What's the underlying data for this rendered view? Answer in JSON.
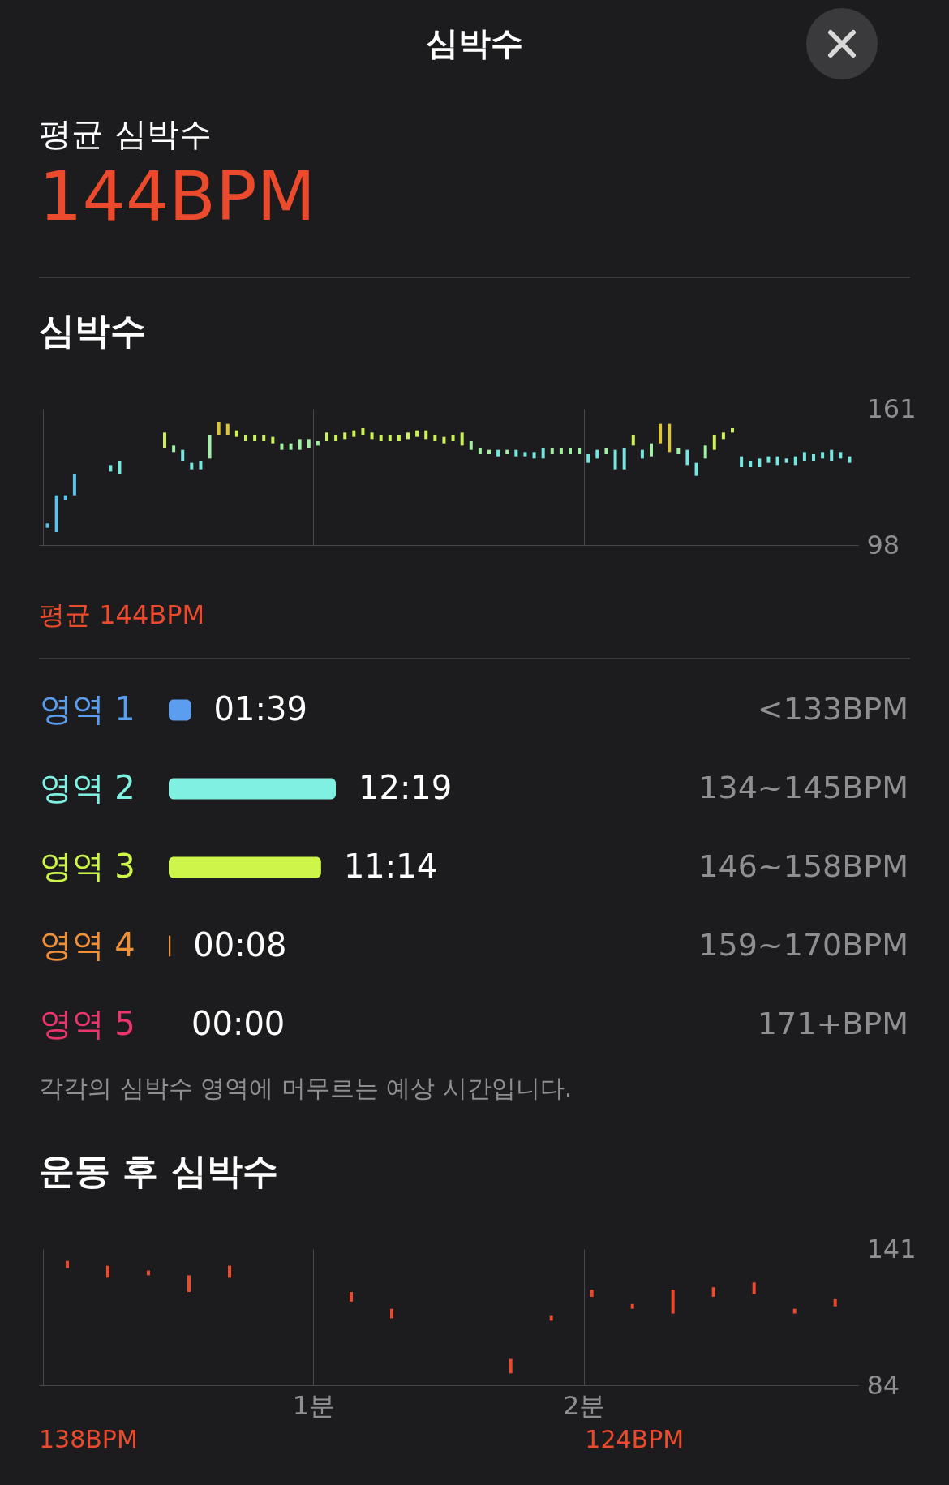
{
  "chart_data": [
    {
      "type": "other",
      "title": "심박수",
      "annotations": [
        "평균 심박수",
        "144BPM"
      ]
    },
    {
      "type": "bar",
      "title": "심박수",
      "categories": [
        null,
        null,
        null,
        null,
        null,
        null,
        null,
        null,
        null,
        null,
        null,
        null,
        null,
        null,
        null,
        null,
        null,
        null,
        null,
        null,
        null,
        null,
        null,
        null,
        null,
        null,
        null,
        null,
        null,
        null,
        null,
        null,
        null,
        null,
        null,
        null,
        null,
        null,
        null,
        null,
        null,
        null,
        null,
        null,
        null,
        null,
        null,
        null,
        null,
        null,
        null,
        null,
        null,
        null,
        null,
        null,
        null,
        null,
        null,
        null,
        null,
        null,
        null,
        null,
        null,
        null,
        null,
        null,
        null,
        null,
        null,
        null,
        null,
        null,
        null,
        null,
        null,
        null,
        null,
        null,
        null,
        null,
        null,
        null,
        null,
        null,
        null,
        null,
        null,
        null
      ],
      "base": [
        106,
        104,
        119,
        121,
        null,
        null,
        null,
        132,
        131,
        null,
        null,
        null,
        null,
        143,
        141,
        137,
        133,
        133,
        138,
        149,
        149,
        148,
        146,
        146,
        146,
        145,
        142,
        142,
        142,
        143,
        144,
        146,
        146,
        147,
        148,
        149,
        147,
        146,
        146,
        146,
        147,
        148,
        147,
        146,
        145,
        146,
        144,
        142,
        140,
        140,
        139,
        140,
        139,
        139,
        138,
        138,
        140,
        140,
        140,
        140,
        136,
        138,
        140,
        133,
        133,
        144,
        138,
        139,
        145,
        141,
        140,
        135,
        130,
        138,
        142,
        147,
        150,
        134,
        134,
        134,
        136,
        135,
        136,
        135,
        137,
        137,
        138,
        137,
        138,
        136
      ],
      "values": [
        2,
        17,
        2,
        10,
        null,
        null,
        null,
        3,
        6,
        null,
        null,
        null,
        null,
        7,
        3,
        5,
        3,
        4,
        11,
        6,
        5,
        3,
        3,
        3,
        3,
        3,
        3,
        3,
        5,
        4,
        2,
        4,
        3,
        3,
        3,
        3,
        3,
        3,
        3,
        3,
        3,
        3,
        4,
        3,
        3,
        3,
        6,
        4,
        3,
        2,
        3,
        2,
        3,
        2,
        3,
        5,
        3,
        3,
        3,
        3,
        4,
        4,
        3,
        9,
        10,
        5,
        4,
        6,
        9,
        13,
        3,
        7,
        6,
        6,
        7,
        3,
        2,
        5,
        3,
        4,
        3,
        4,
        2,
        4,
        4,
        3,
        3,
        5,
        3,
        3
      ],
      "colors": [
        "#5bc3ea",
        "#5bc3ea",
        "#5bc3ea",
        "#5bc3ea",
        null,
        null,
        null,
        "#78e6e0",
        "#78e6e0",
        null,
        null,
        null,
        null,
        "#cdf258",
        "#a4efa6",
        "#78e6e0",
        "#78e6e0",
        "#78e6e0",
        "#a4efa6",
        "#dcc53a",
        "#dcc53a",
        "#cdf258",
        "#cdf258",
        "#cdf258",
        "#cdf258",
        "#cdf258",
        "#a4efa6",
        "#a4efa6",
        "#a4efa6",
        "#a4efa6",
        "#a4efa6",
        "#cdf258",
        "#cdf258",
        "#cdf258",
        "#cdf258",
        "#cdf258",
        "#cdf258",
        "#cdf258",
        "#cdf258",
        "#cdf258",
        "#cdf258",
        "#cdf258",
        "#cdf258",
        "#cdf258",
        "#cdf258",
        "#cdf258",
        "#cdf258",
        "#a4efa6",
        "#a4efa6",
        "#a4efa6",
        "#78e6e0",
        "#a4efa6",
        "#78e6e0",
        "#78e6e0",
        "#78e6e0",
        "#78e6e0",
        "#a4efa6",
        "#a4efa6",
        "#a4efa6",
        "#a4efa6",
        "#78e6e0",
        "#78e6e0",
        "#a4efa6",
        "#78e6e0",
        "#78e6e0",
        "#cdf258",
        "#78e6e0",
        "#a4efa6",
        "#dcc53a",
        "#dcc53a",
        "#a4efa6",
        "#78e6e0",
        "#78e6e0",
        "#a4efa6",
        "#cdf258",
        "#cdf258",
        "#cdf258",
        "#78e6e0",
        "#78e6e0",
        "#78e6e0",
        "#78e6e0",
        "#78e6e0",
        "#78e6e0",
        "#78e6e0",
        "#78e6e0",
        "#78e6e0",
        "#78e6e0",
        "#78e6e0",
        "#78e6e0",
        "#78e6e0"
      ],
      "ylim": [
        98,
        161
      ],
      "yticks": [
        98,
        161
      ],
      "grid": "x",
      "annotations": [
        "평균 144BPM"
      ]
    },
    {
      "type": "bar",
      "orientation": "horizontal",
      "categories": [
        "영역 1",
        "영역 2",
        "영역 3",
        "영역 4",
        "영역 5"
      ],
      "values": [
        99,
        739,
        674,
        8,
        0
      ],
      "colors": [
        "#5b9ef0",
        "#7ff0e2",
        "#cdf54a",
        "#f0913a",
        "#e8356c"
      ],
      "value_labels": [
        "01:39",
        "12:19",
        "11:14",
        "00:08",
        "00:00"
      ],
      "annotations": [
        "<133BPM",
        "134~145BPM",
        "146~158BPM",
        "159~170BPM",
        "171+BPM",
        "각각의 심박수 영역에 머무르는 예상 시간입니다."
      ]
    },
    {
      "type": "bar",
      "title": "운동 후 심박수",
      "x": [
        0.09,
        0.24,
        0.39,
        0.54,
        0.69,
        1.14,
        1.29,
        1.73,
        1.88,
        2.03,
        2.18,
        2.33,
        2.48,
        2.63,
        2.78,
        2.93
      ],
      "base": [
        133,
        129,
        130,
        123,
        129,
        119,
        112,
        89,
        111,
        121,
        116,
        114,
        121,
        122,
        114,
        117
      ],
      "values": [
        3,
        5,
        2,
        7,
        5,
        4,
        4,
        6,
        2,
        3,
        2,
        10,
        4,
        5,
        2,
        3
      ],
      "color": "#eb4a2d",
      "xlim": [
        0,
        3
      ],
      "xticks": [
        {
          "value": 1,
          "label": "1분"
        },
        {
          "value": 2,
          "label": "2분"
        }
      ],
      "ylim": [
        84,
        141
      ],
      "yticks": [
        84,
        141
      ],
      "grid": "x",
      "annotations": [
        "138BPM",
        "124BPM"
      ]
    }
  ]
}
